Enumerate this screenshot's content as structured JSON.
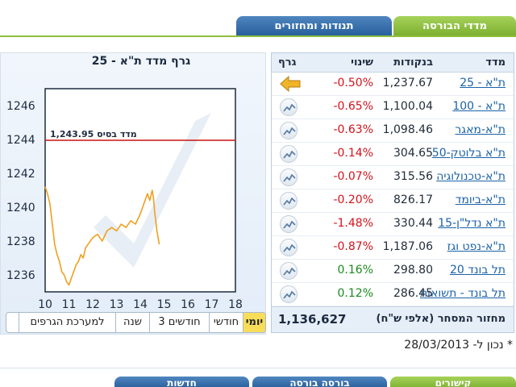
{
  "tabs": {
    "active": "מדדי הבורסה",
    "inactive": "תנודות ומחזורים"
  },
  "table": {
    "headers": {
      "name": "מדד",
      "points": "בנקודות",
      "change": "שינוי",
      "chart": "גרף"
    },
    "rows": [
      {
        "name": "ת\"א - 25",
        "points": "1,237.67",
        "change": "-0.50%",
        "dir": "neg",
        "icon": "arrow-left-icon"
      },
      {
        "name": "ת\"א - 100",
        "points": "1,100.04",
        "change": "-0.65%",
        "dir": "neg",
        "icon": "sparkline-icon"
      },
      {
        "name": "ת\"א-מאגר",
        "points": "1,098.46",
        "change": "-0.63%",
        "dir": "neg",
        "icon": "sparkline-icon"
      },
      {
        "name": "ת\"א בלוטק-50",
        "points": "304.65",
        "change": "-0.14%",
        "dir": "neg",
        "icon": "sparkline-icon"
      },
      {
        "name": "ת\"א-טכנולוגיה",
        "points": "315.56",
        "change": "-0.07%",
        "dir": "neg",
        "icon": "sparkline-icon"
      },
      {
        "name": "ת\"א-ביומד",
        "points": "826.17",
        "change": "-0.20%",
        "dir": "neg",
        "icon": "sparkline-icon"
      },
      {
        "name": "ת\"א נדל\"ן-15",
        "points": "330.44",
        "change": "-1.48%",
        "dir": "neg",
        "icon": "sparkline-icon"
      },
      {
        "name": "ת\"א-נפט וגז",
        "points": "1,187.06",
        "change": "-0.87%",
        "dir": "neg",
        "icon": "sparkline-icon"
      },
      {
        "name": "תל בונד 20",
        "points": "298.80",
        "change": "0.16%",
        "dir": "pos",
        "icon": "sparkline-icon"
      },
      {
        "name": "תל בונד - תשואות",
        "points": "286.45",
        "change": "0.12%",
        "dir": "pos",
        "icon": "sparkline-icon"
      }
    ],
    "turnover_label": "מחזור המסחר (אלפי ש\"ח)",
    "turnover_value": "1,136,627"
  },
  "updated_text": "* נכון ל- 28/03/2013",
  "range_buttons": [
    "יומי",
    "חודשי",
    "3 חודשים",
    "שנה",
    "למערכת הגרפים"
  ],
  "active_range": "יומי",
  "bottom_tabs": [
    "קישורים",
    "בורסה בורסה",
    "חדשות"
  ],
  "colors": {
    "green_tab": "#8fbf3e",
    "blue_tab": "#2f6aa8",
    "negative": "#d4121b",
    "positive": "#1a8a1a",
    "base_line": "#cc1111",
    "series": "#f0a020",
    "active_button": "#f8dd59"
  },
  "chart_data": {
    "type": "line",
    "title": "גרף מדד ת\"א - 25",
    "base_label": "מדד בסיס 1,243.95",
    "base_value": 1243.95,
    "xlim": [
      10,
      18
    ],
    "x_ticks": [
      10,
      11,
      12,
      13,
      14,
      15,
      16,
      17,
      18
    ],
    "ylim": [
      1235,
      1247
    ],
    "y_ticks": [
      1236,
      1238,
      1240,
      1242,
      1244,
      1246
    ],
    "grid": false,
    "series": [
      {
        "x": [
          10.0,
          10.1,
          10.2,
          10.3,
          10.4,
          10.5,
          10.6,
          10.7,
          10.8,
          10.9,
          11.0,
          11.1,
          11.2,
          11.3,
          11.4,
          11.5,
          11.6,
          11.7,
          11.8,
          11.9,
          12.0,
          12.2,
          12.4,
          12.6,
          12.8,
          13.0,
          13.2,
          13.4,
          13.6,
          13.8,
          14.0,
          14.2,
          14.3,
          14.4,
          14.5,
          14.55,
          14.6,
          14.7,
          14.8
        ],
        "y": [
          1241.2,
          1240.8,
          1240.2,
          1239.0,
          1237.8,
          1237.2,
          1236.8,
          1236.2,
          1236.0,
          1235.6,
          1235.4,
          1235.8,
          1236.2,
          1236.6,
          1236.8,
          1237.2,
          1237.0,
          1237.6,
          1237.8,
          1238.0,
          1238.2,
          1238.4,
          1238.0,
          1238.6,
          1238.8,
          1238.6,
          1239.0,
          1238.8,
          1239.2,
          1239.0,
          1239.6,
          1240.4,
          1240.8,
          1240.4,
          1241.0,
          1240.6,
          1239.8,
          1238.6,
          1237.8
        ]
      }
    ]
  }
}
